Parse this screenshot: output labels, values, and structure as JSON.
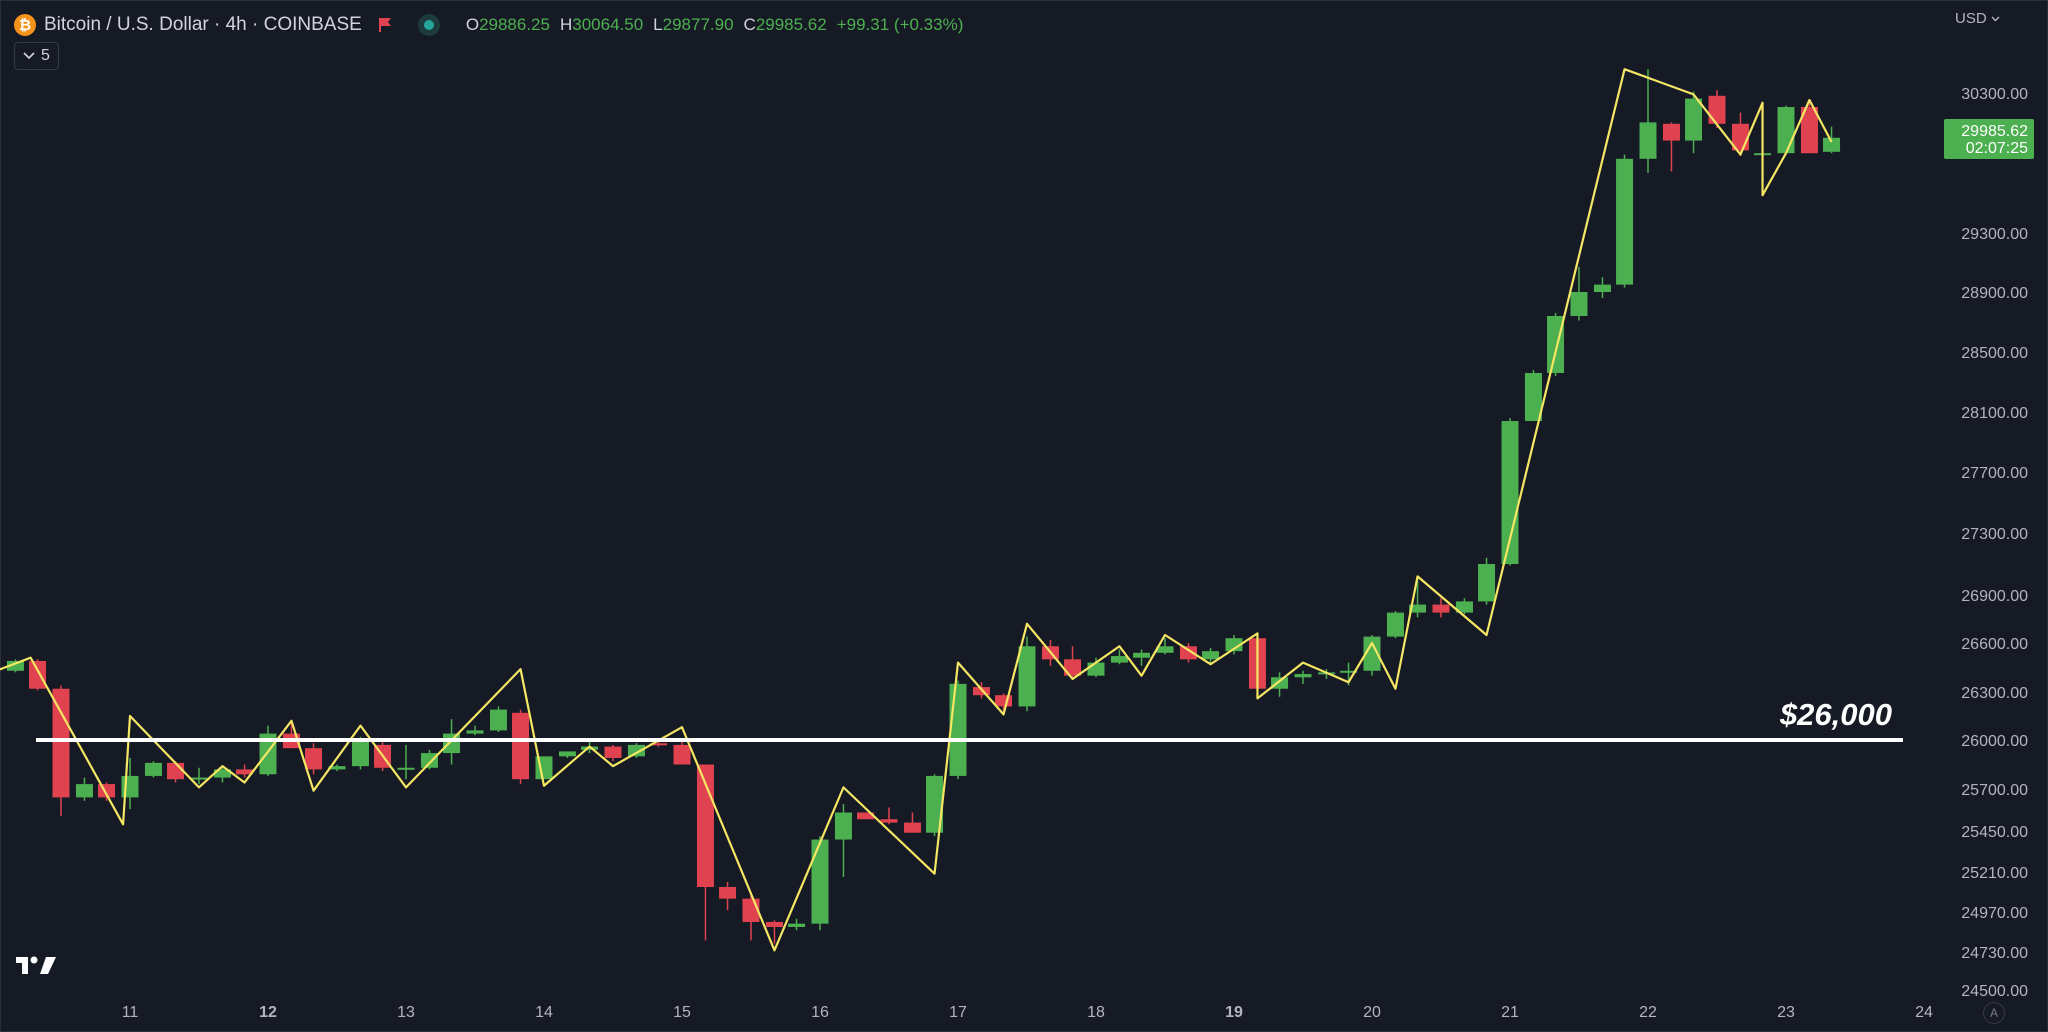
{
  "header": {
    "coin_icon_glyph": "₿",
    "coin_icon_color": "#f7931a",
    "title": "Bitcoin / U.S. Dollar · 4h · COINBASE",
    "flag_icon": "flag-icon",
    "status_icon": "market-status-dot-icon",
    "ohlc": {
      "o_label": "O",
      "o_value": "29886.25",
      "h_label": "H",
      "h_value": "30064.50",
      "l_label": "L",
      "l_value": "29877.90",
      "c_label": "C",
      "c_value": "29985.62",
      "change": "+99.31 (+0.33%)"
    }
  },
  "indicators_toggle": {
    "icon": "chevron-down-icon",
    "count": "5"
  },
  "currency_menu": {
    "label": "USD",
    "icon": "chevron-down-icon"
  },
  "price_badge": {
    "price": "29985.62",
    "countdown": "02:07:25",
    "color": "#4caf50"
  },
  "logo": "tradingview-logo-icon",
  "auto_scale_button": "A",
  "colors": {
    "up": "#4caf50",
    "down": "#e0434f",
    "zigzag": "#f5e663",
    "level_line": "#ffffff",
    "background": "#161a25"
  },
  "chart_data": {
    "type": "candlestick",
    "title": "Bitcoin / U.S. Dollar · 4h · COINBASE",
    "x_tick_labels": [
      {
        "label": "11",
        "day": 11,
        "bold": false
      },
      {
        "label": "12",
        "day": 12,
        "bold": true
      },
      {
        "label": "13",
        "day": 13,
        "bold": false
      },
      {
        "label": "14",
        "day": 14,
        "bold": false
      },
      {
        "label": "15",
        "day": 15,
        "bold": false
      },
      {
        "label": "16",
        "day": 16,
        "bold": false
      },
      {
        "label": "17",
        "day": 17,
        "bold": false
      },
      {
        "label": "18",
        "day": 18,
        "bold": false
      },
      {
        "label": "19",
        "day": 19,
        "bold": true
      },
      {
        "label": "20",
        "day": 20,
        "bold": false
      },
      {
        "label": "21",
        "day": 21,
        "bold": false
      },
      {
        "label": "22",
        "day": 22,
        "bold": false
      },
      {
        "label": "23",
        "day": 23,
        "bold": false
      },
      {
        "label": "24",
        "day": 24,
        "bold": false
      }
    ],
    "y_tick_labels": [
      {
        "label": "30300.00",
        "value": 30300
      },
      {
        "label": "29300.00",
        "value": 29300
      },
      {
        "label": "28900.00",
        "value": 28900
      },
      {
        "label": "28500.00",
        "value": 28500
      },
      {
        "label": "28100.00",
        "value": 28100
      },
      {
        "label": "27700.00",
        "value": 27700
      },
      {
        "label": "27300.00",
        "value": 27300
      },
      {
        "label": "26900.00",
        "value": 26900
      },
      {
        "label": "26600.00",
        "value": 26600
      },
      {
        "label": "26300.00",
        "value": 26300
      },
      {
        "label": "26000.00",
        "value": 26000
      },
      {
        "label": "25700.00",
        "value": 25700
      },
      {
        "label": "25450.00",
        "value": 25450
      },
      {
        "label": "25210.00",
        "value": 25210
      },
      {
        "label": "24970.00",
        "value": 24970
      },
      {
        "label": "24730.00",
        "value": 24730
      },
      {
        "label": "24500.00",
        "value": 24500
      }
    ],
    "candles": [
      {
        "t": 10.17,
        "o": 26430,
        "h": 26500,
        "l": 26420,
        "c": 26490
      },
      {
        "t": 10.33,
        "o": 26490,
        "h": 26500,
        "l": 26310,
        "c": 26320
      },
      {
        "t": 10.5,
        "o": 26320,
        "h": 26340,
        "l": 25540,
        "c": 25650
      },
      {
        "t": 10.67,
        "o": 25650,
        "h": 25770,
        "l": 25630,
        "c": 25730
      },
      {
        "t": 10.83,
        "o": 25730,
        "h": 25740,
        "l": 25630,
        "c": 25650
      },
      {
        "t": 11.0,
        "o": 25650,
        "h": 25890,
        "l": 25580,
        "c": 25780
      },
      {
        "t": 11.17,
        "o": 25780,
        "h": 25870,
        "l": 25770,
        "c": 25860
      },
      {
        "t": 11.33,
        "o": 25860,
        "h": 25870,
        "l": 25740,
        "c": 25760
      },
      {
        "t": 11.5,
        "o": 25760,
        "h": 25830,
        "l": 25730,
        "c": 25770
      },
      {
        "t": 11.67,
        "o": 25770,
        "h": 25830,
        "l": 25740,
        "c": 25820
      },
      {
        "t": 11.83,
        "o": 25820,
        "h": 25850,
        "l": 25770,
        "c": 25790
      },
      {
        "t": 12.0,
        "o": 25790,
        "h": 26090,
        "l": 25780,
        "c": 26040
      },
      {
        "t": 12.17,
        "o": 26040,
        "h": 26110,
        "l": 25970,
        "c": 25950
      },
      {
        "t": 12.33,
        "o": 25950,
        "h": 25980,
        "l": 25790,
        "c": 25820
      },
      {
        "t": 12.5,
        "o": 25820,
        "h": 25850,
        "l": 25810,
        "c": 25840
      },
      {
        "t": 12.67,
        "o": 25840,
        "h": 26020,
        "l": 25820,
        "c": 26000
      },
      {
        "t": 12.83,
        "o": 25970,
        "h": 26000,
        "l": 25810,
        "c": 25830
      },
      {
        "t": 13.0,
        "o": 25830,
        "h": 25970,
        "l": 25760,
        "c": 25830
      },
      {
        "t": 13.17,
        "o": 25830,
        "h": 25940,
        "l": 25820,
        "c": 25920
      },
      {
        "t": 13.33,
        "o": 25920,
        "h": 26130,
        "l": 25850,
        "c": 26040
      },
      {
        "t": 13.5,
        "o": 26040,
        "h": 26090,
        "l": 26030,
        "c": 26060
      },
      {
        "t": 13.67,
        "o": 26060,
        "h": 26210,
        "l": 26050,
        "c": 26190
      },
      {
        "t": 13.83,
        "o": 26170,
        "h": 26190,
        "l": 25730,
        "c": 25760
      },
      {
        "t": 14.0,
        "o": 25760,
        "h": 25880,
        "l": 25760,
        "c": 25900
      },
      {
        "t": 14.17,
        "o": 25900,
        "h": 25930,
        "l": 25890,
        "c": 25930
      },
      {
        "t": 14.33,
        "o": 25940,
        "h": 25990,
        "l": 25920,
        "c": 25960
      },
      {
        "t": 14.5,
        "o": 25960,
        "h": 25970,
        "l": 25870,
        "c": 25890
      },
      {
        "t": 14.67,
        "o": 25900,
        "h": 25980,
        "l": 25890,
        "c": 25970
      },
      {
        "t": 14.83,
        "o": 25980,
        "h": 26000,
        "l": 25960,
        "c": 25970
      },
      {
        "t": 15.0,
        "o": 25970,
        "h": 25990,
        "l": 25900,
        "c": 25850
      },
      {
        "t": 15.17,
        "o": 25850,
        "h": 25850,
        "l": 24800,
        "c": 25120
      },
      {
        "t": 15.33,
        "o": 25120,
        "h": 25150,
        "l": 24980,
        "c": 25050
      },
      {
        "t": 15.5,
        "o": 25050,
        "h": 25070,
        "l": 24800,
        "c": 24910
      },
      {
        "t": 15.67,
        "o": 24910,
        "h": 24920,
        "l": 24780,
        "c": 24880
      },
      {
        "t": 15.83,
        "o": 24880,
        "h": 24930,
        "l": 24860,
        "c": 24900
      },
      {
        "t": 16.0,
        "o": 24900,
        "h": 25420,
        "l": 24860,
        "c": 25400
      },
      {
        "t": 16.17,
        "o": 25400,
        "h": 25610,
        "l": 25180,
        "c": 25560
      },
      {
        "t": 16.33,
        "o": 25560,
        "h": 25560,
        "l": 25520,
        "c": 25520
      },
      {
        "t": 16.5,
        "o": 25520,
        "h": 25590,
        "l": 25490,
        "c": 25500
      },
      {
        "t": 16.67,
        "o": 25500,
        "h": 25560,
        "l": 25440,
        "c": 25440
      },
      {
        "t": 16.83,
        "o": 25440,
        "h": 25790,
        "l": 25420,
        "c": 25780
      },
      {
        "t": 17.0,
        "o": 25780,
        "h": 26370,
        "l": 25760,
        "c": 26350
      },
      {
        "t": 17.17,
        "o": 26330,
        "h": 26360,
        "l": 26260,
        "c": 26280
      },
      {
        "t": 17.33,
        "o": 26280,
        "h": 26290,
        "l": 26160,
        "c": 26210
      },
      {
        "t": 17.5,
        "o": 26210,
        "h": 26640,
        "l": 26180,
        "c": 26580
      },
      {
        "t": 17.67,
        "o": 26580,
        "h": 26620,
        "l": 26460,
        "c": 26500
      },
      {
        "t": 17.83,
        "o": 26500,
        "h": 26580,
        "l": 26380,
        "c": 26400
      },
      {
        "t": 18.0,
        "o": 26400,
        "h": 26510,
        "l": 26390,
        "c": 26480
      },
      {
        "t": 18.17,
        "o": 26480,
        "h": 26560,
        "l": 26470,
        "c": 26520
      },
      {
        "t": 18.33,
        "o": 26510,
        "h": 26560,
        "l": 26460,
        "c": 26540
      },
      {
        "t": 18.5,
        "o": 26540,
        "h": 26630,
        "l": 26530,
        "c": 26580
      },
      {
        "t": 18.67,
        "o": 26580,
        "h": 26600,
        "l": 26480,
        "c": 26500
      },
      {
        "t": 18.83,
        "o": 26500,
        "h": 26570,
        "l": 26470,
        "c": 26550
      },
      {
        "t": 19.0,
        "o": 26550,
        "h": 26650,
        "l": 26530,
        "c": 26630
      },
      {
        "t": 19.17,
        "o": 26630,
        "h": 26650,
        "l": 26290,
        "c": 26320
      },
      {
        "t": 19.33,
        "o": 26320,
        "h": 26420,
        "l": 26270,
        "c": 26390
      },
      {
        "t": 19.5,
        "o": 26390,
        "h": 26430,
        "l": 26350,
        "c": 26410
      },
      {
        "t": 19.67,
        "o": 26410,
        "h": 26440,
        "l": 26380,
        "c": 26420
      },
      {
        "t": 19.83,
        "o": 26420,
        "h": 26480,
        "l": 26340,
        "c": 26430
      },
      {
        "t": 20.0,
        "o": 26430,
        "h": 26650,
        "l": 26400,
        "c": 26640
      },
      {
        "t": 20.17,
        "o": 26640,
        "h": 26800,
        "l": 26630,
        "c": 26790
      },
      {
        "t": 20.33,
        "o": 26790,
        "h": 27010,
        "l": 26760,
        "c": 26840
      },
      {
        "t": 20.5,
        "o": 26840,
        "h": 26880,
        "l": 26760,
        "c": 26790
      },
      {
        "t": 20.67,
        "o": 26790,
        "h": 26880,
        "l": 26780,
        "c": 26860
      },
      {
        "t": 20.83,
        "o": 26860,
        "h": 27140,
        "l": 26840,
        "c": 27100
      },
      {
        "t": 21.0,
        "o": 27100,
        "h": 28060,
        "l": 27090,
        "c": 28040
      },
      {
        "t": 21.17,
        "o": 28040,
        "h": 28380,
        "l": 28040,
        "c": 28360
      },
      {
        "t": 21.33,
        "o": 28360,
        "h": 28760,
        "l": 28340,
        "c": 28740
      },
      {
        "t": 21.5,
        "o": 28740,
        "h": 29070,
        "l": 28710,
        "c": 28900
      },
      {
        "t": 21.67,
        "o": 28900,
        "h": 29000,
        "l": 28860,
        "c": 28950
      },
      {
        "t": 21.83,
        "o": 28950,
        "h": 29860,
        "l": 28930,
        "c": 29830
      },
      {
        "t": 22.0,
        "o": 29830,
        "h": 30470,
        "l": 29730,
        "c": 30090
      },
      {
        "t": 22.17,
        "o": 30080,
        "h": 30090,
        "l": 29740,
        "c": 29960
      },
      {
        "t": 22.33,
        "o": 29960,
        "h": 30310,
        "l": 29870,
        "c": 30260
      },
      {
        "t": 22.5,
        "o": 30280,
        "h": 30320,
        "l": 30050,
        "c": 30080
      },
      {
        "t": 22.67,
        "o": 30080,
        "h": 30160,
        "l": 29850,
        "c": 29890
      },
      {
        "t": 22.83,
        "o": 29870,
        "h": 30160,
        "l": 29600,
        "c": 29870
      },
      {
        "t": 23.0,
        "o": 29870,
        "h": 30210,
        "l": 29870,
        "c": 30200
      },
      {
        "t": 23.17,
        "o": 30200,
        "h": 30250,
        "l": 29870,
        "c": 29870
      },
      {
        "t": 23.33,
        "o": 29880,
        "h": 30060,
        "l": 29870,
        "c": 29980
      }
    ],
    "zigzag": [
      {
        "t": 10.0,
        "p": 26420
      },
      {
        "t": 10.28,
        "p": 26510
      },
      {
        "t": 10.95,
        "p": 25490
      },
      {
        "t": 11.0,
        "p": 26150
      },
      {
        "t": 11.5,
        "p": 25710
      },
      {
        "t": 11.67,
        "p": 25840
      },
      {
        "t": 11.83,
        "p": 25740
      },
      {
        "t": 12.17,
        "p": 26120
      },
      {
        "t": 12.33,
        "p": 25690
      },
      {
        "t": 12.67,
        "p": 26090
      },
      {
        "t": 13.0,
        "p": 25710
      },
      {
        "t": 13.83,
        "p": 26440
      },
      {
        "t": 14.0,
        "p": 25720
      },
      {
        "t": 14.33,
        "p": 25960
      },
      {
        "t": 14.5,
        "p": 25840
      },
      {
        "t": 15.0,
        "p": 26080
      },
      {
        "t": 15.67,
        "p": 24740
      },
      {
        "t": 16.17,
        "p": 25710
      },
      {
        "t": 16.83,
        "p": 25200
      },
      {
        "t": 17.0,
        "p": 26480
      },
      {
        "t": 17.33,
        "p": 26160
      },
      {
        "t": 17.5,
        "p": 26720
      },
      {
        "t": 17.83,
        "p": 26380
      },
      {
        "t": 18.17,
        "p": 26580
      },
      {
        "t": 18.33,
        "p": 26400
      },
      {
        "t": 18.5,
        "p": 26650
      },
      {
        "t": 18.83,
        "p": 26470
      },
      {
        "t": 19.17,
        "p": 26660
      },
      {
        "t": 19.17,
        "p": 26260
      },
      {
        "t": 19.5,
        "p": 26480
      },
      {
        "t": 19.83,
        "p": 26360
      },
      {
        "t": 20.0,
        "p": 26600
      },
      {
        "t": 20.17,
        "p": 26320
      },
      {
        "t": 20.33,
        "p": 27020
      },
      {
        "t": 20.83,
        "p": 26650
      },
      {
        "t": 21.83,
        "p": 30470
      },
      {
        "t": 22.33,
        "p": 30290
      },
      {
        "t": 22.67,
        "p": 29860
      },
      {
        "t": 22.83,
        "p": 30230
      },
      {
        "t": 22.83,
        "p": 29570
      },
      {
        "t": 23.0,
        "p": 29870
      },
      {
        "t": 23.17,
        "p": 30250
      },
      {
        "t": 23.33,
        "p": 29950
      }
    ],
    "horizontal_level": {
      "price": 26000,
      "label": "$26,000"
    }
  }
}
